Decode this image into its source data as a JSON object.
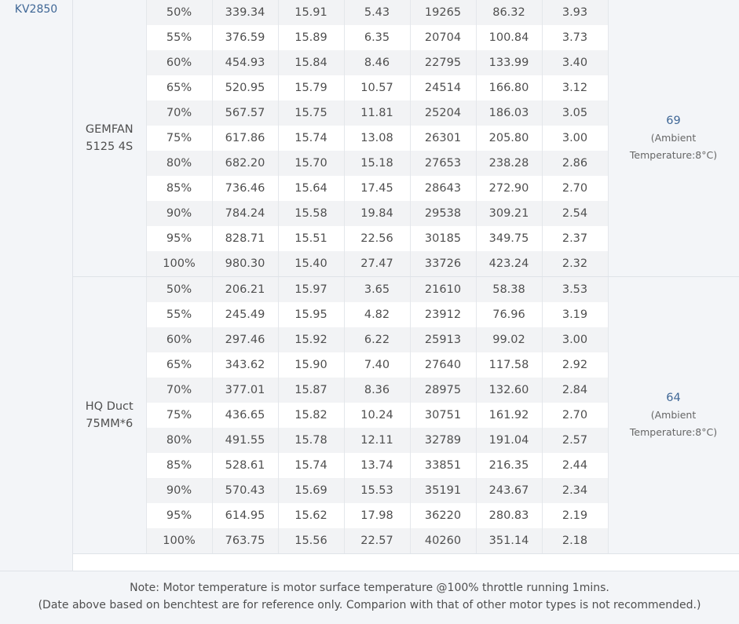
{
  "motor": {
    "kv_label": "KV2850"
  },
  "groups": [
    {
      "propeller_line1": "GEMFAN",
      "propeller_line2": "5125 4S",
      "temperature": "69",
      "ambient_line1": "(Ambient",
      "ambient_line2": "Temperature:8°C)",
      "rows": [
        [
          "50%",
          "339.34",
          "15.91",
          "5.43",
          "19265",
          "86.32",
          "3.93"
        ],
        [
          "55%",
          "376.59",
          "15.89",
          "6.35",
          "20704",
          "100.84",
          "3.73"
        ],
        [
          "60%",
          "454.93",
          "15.84",
          "8.46",
          "22795",
          "133.99",
          "3.40"
        ],
        [
          "65%",
          "520.95",
          "15.79",
          "10.57",
          "24514",
          "166.80",
          "3.12"
        ],
        [
          "70%",
          "567.57",
          "15.75",
          "11.81",
          "25204",
          "186.03",
          "3.05"
        ],
        [
          "75%",
          "617.86",
          "15.74",
          "13.08",
          "26301",
          "205.80",
          "3.00"
        ],
        [
          "80%",
          "682.20",
          "15.70",
          "15.18",
          "27653",
          "238.28",
          "2.86"
        ],
        [
          "85%",
          "736.46",
          "15.64",
          "17.45",
          "28643",
          "272.90",
          "2.70"
        ],
        [
          "90%",
          "784.24",
          "15.58",
          "19.84",
          "29538",
          "309.21",
          "2.54"
        ],
        [
          "95%",
          "828.71",
          "15.51",
          "22.56",
          "30185",
          "349.75",
          "2.37"
        ],
        [
          "100%",
          "980.30",
          "15.40",
          "27.47",
          "33726",
          "423.24",
          "2.32"
        ]
      ]
    },
    {
      "propeller_line1": "HQ Duct",
      "propeller_line2": "75MM*6",
      "temperature": "64",
      "ambient_line1": "(Ambient",
      "ambient_line2": "Temperature:8°C)",
      "rows": [
        [
          "50%",
          "206.21",
          "15.97",
          "3.65",
          "21610",
          "58.38",
          "3.53"
        ],
        [
          "55%",
          "245.49",
          "15.95",
          "4.82",
          "23912",
          "76.96",
          "3.19"
        ],
        [
          "60%",
          "297.46",
          "15.92",
          "6.22",
          "25913",
          "99.02",
          "3.00"
        ],
        [
          "65%",
          "343.62",
          "15.90",
          "7.40",
          "27640",
          "117.58",
          "2.92"
        ],
        [
          "70%",
          "377.01",
          "15.87",
          "8.36",
          "28975",
          "132.60",
          "2.84"
        ],
        [
          "75%",
          "436.65",
          "15.82",
          "10.24",
          "30751",
          "161.92",
          "2.70"
        ],
        [
          "80%",
          "491.55",
          "15.78",
          "12.11",
          "32789",
          "191.04",
          "2.57"
        ],
        [
          "85%",
          "528.61",
          "15.74",
          "13.74",
          "33851",
          "216.35",
          "2.44"
        ],
        [
          "90%",
          "570.43",
          "15.69",
          "15.53",
          "35191",
          "243.67",
          "2.34"
        ],
        [
          "95%",
          "614.95",
          "15.62",
          "17.98",
          "36220",
          "280.83",
          "2.19"
        ],
        [
          "100%",
          "763.75",
          "15.56",
          "22.57",
          "40260",
          "351.14",
          "2.18"
        ]
      ]
    }
  ],
  "note": {
    "line1": "Note: Motor temperature is motor surface temperature @100% throttle running 1mins.",
    "line2": "(Date above based on benchtest are for reference only. Comparion with that of other motor types is not recommended.)"
  },
  "colors": {
    "accent": "#3f6796",
    "stripe": "#f2f3f5",
    "panel": "#f3f5f8"
  }
}
